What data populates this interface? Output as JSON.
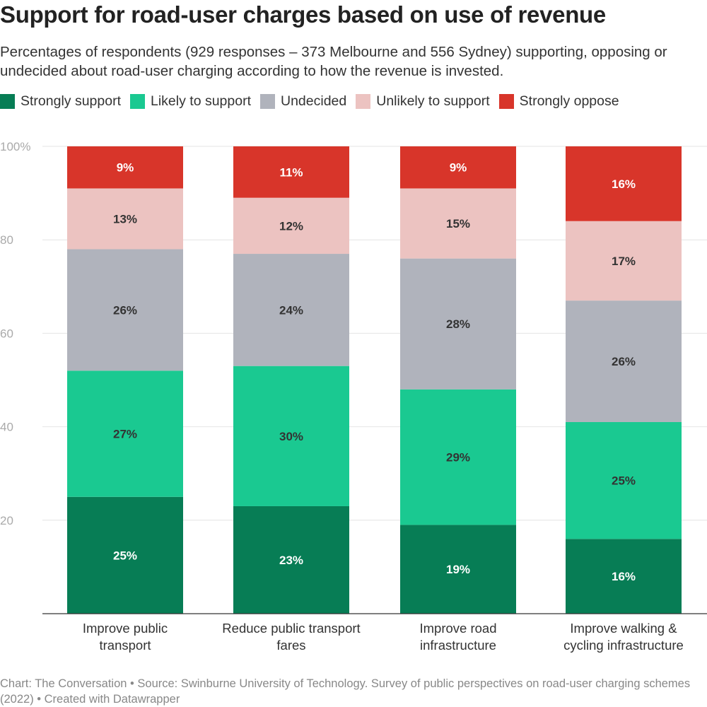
{
  "title": "Support for road-user charges based on use of revenue",
  "subtitle": "Percentages of respondents (929 responses – 373 Melbourne and 556 Sydney) supporting, opposing or undecided about road-user charging according to how the revenue is invested.",
  "footer": "Chart: The Conversation • Source: Swinburne University of Technology. Survey of public perspectives on road-user charging schemes (2022) • Created with Datawrapper",
  "chart_data": {
    "type": "bar",
    "stacked": true,
    "categories": [
      "Improve public transport",
      "Reduce public transport fares",
      "Improve road infrastructure",
      "Improve walking & cycling infrastructure"
    ],
    "category_lines": [
      [
        "Improve public",
        "transport"
      ],
      [
        "Reduce public transport",
        "fares"
      ],
      [
        "Improve road",
        "infrastructure"
      ],
      [
        "Improve walking &",
        "cycling infrastructure"
      ]
    ],
    "series": [
      {
        "name": "Strongly support",
        "color": "#077d55",
        "values": [
          25,
          23,
          19,
          16
        ]
      },
      {
        "name": "Likely to support",
        "color": "#1ac991",
        "values": [
          27,
          30,
          29,
          25
        ]
      },
      {
        "name": "Undecided",
        "color": "#b0b3bc",
        "values": [
          26,
          24,
          28,
          26
        ]
      },
      {
        "name": "Unlikely to support",
        "color": "#ecc3c1",
        "values": [
          13,
          12,
          15,
          17
        ]
      },
      {
        "name": "Strongly oppose",
        "color": "#d8352a",
        "values": [
          9,
          11,
          9,
          16
        ]
      }
    ],
    "ylim": [
      0,
      100
    ],
    "yticks": [
      20,
      40,
      60,
      80,
      100
    ],
    "ytick_labels": [
      "20",
      "40",
      "60",
      "80",
      "100%"
    ],
    "grid": true,
    "legend": "top-left",
    "value_suffix": "%"
  }
}
